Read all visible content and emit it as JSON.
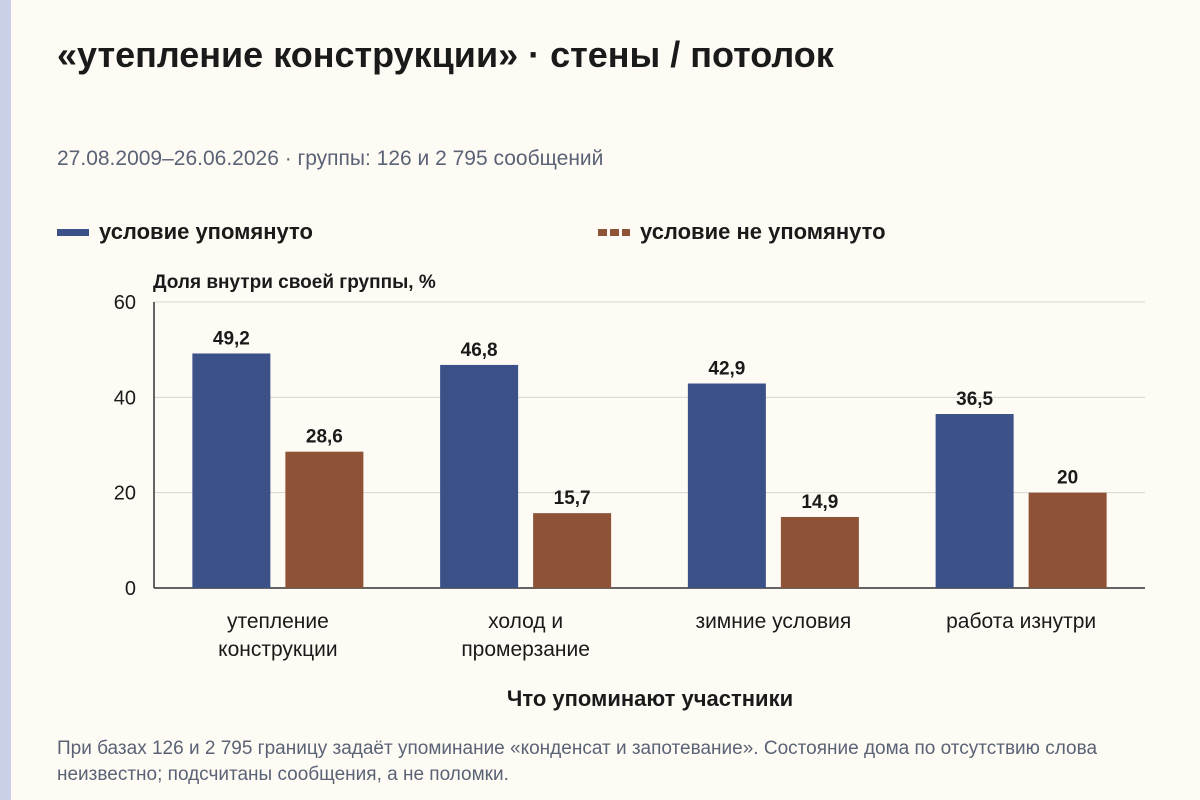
{
  "title": "«утепление конструкции» · стены / потолок",
  "subtitle": "27.08.2009–26.06.2026 · группы: 126 и 2 795 сообщений",
  "footnote": "При базах 126 и 2 795 границу задаёт упоминание «конденсат и запотевание». Состояние дома по отсутствию слова неизвестно; подсчитаны сообщения, а не поломки.",
  "colors": {
    "mentioned": "#3d5189",
    "not_mentioned": "#8e5236",
    "grid": "#d8d6d0",
    "background": "#fdfbf4"
  },
  "chart_data": {
    "type": "bar",
    "title": "",
    "ylabel": "Доля внутри своей группы, %",
    "xlabel": "Что упоминают участники",
    "ylim": [
      0,
      60
    ],
    "yticks": [
      0,
      20,
      40,
      60
    ],
    "grid": true,
    "legend_placement": "top",
    "categories": [
      [
        "утепление",
        "конструкции"
      ],
      [
        "холод и",
        "промерзание"
      ],
      [
        "зимние условия"
      ],
      [
        "работа изнутри"
      ]
    ],
    "series": [
      {
        "name": "условие упомянуто",
        "color": "#3d5189",
        "values": [
          49.2,
          46.8,
          42.9,
          36.5
        ],
        "labels": [
          "49,2",
          "46,8",
          "42,9",
          "36,5"
        ]
      },
      {
        "name": "условие не упомянуто",
        "color": "#8e5236",
        "values": [
          28.6,
          15.7,
          14.9,
          20
        ],
        "labels": [
          "28,6",
          "15,7",
          "14,9",
          "20"
        ]
      }
    ]
  }
}
